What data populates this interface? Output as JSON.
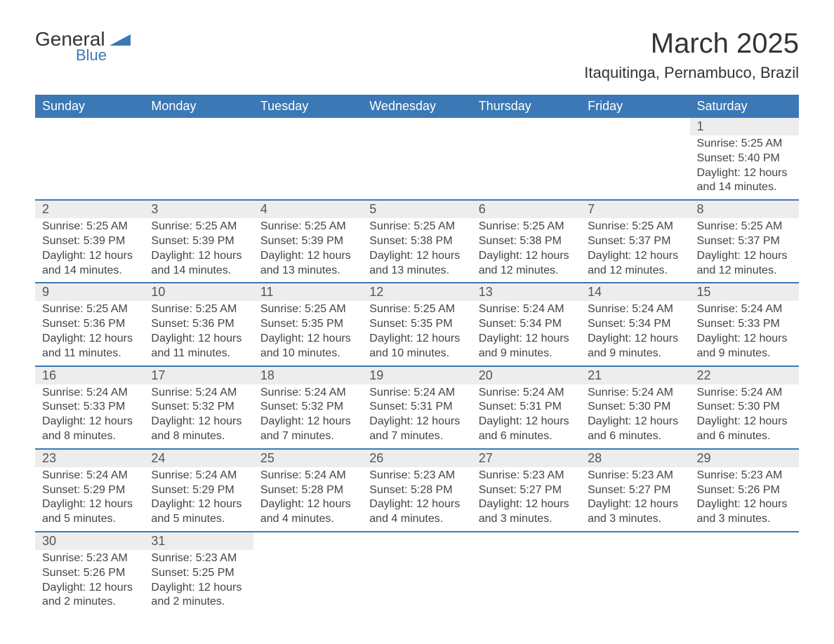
{
  "logo": {
    "text_general": "General",
    "text_blue": "Blue",
    "shape_color": "#3b78b5"
  },
  "title": "March 2025",
  "location": "Itaquitinga, Pernambuco, Brazil",
  "colors": {
    "header_bg": "#3b78b5",
    "header_text": "#ffffff",
    "daynum_bg": "#ededed",
    "row_divider": "#3b78b5",
    "body_text": "#444444",
    "page_bg": "#ffffff"
  },
  "fonts": {
    "title_size_pt": 30,
    "location_size_pt": 16,
    "header_size_pt": 14,
    "daynum_size_pt": 14,
    "detail_size_pt": 12,
    "family": "Arial"
  },
  "day_headers": [
    "Sunday",
    "Monday",
    "Tuesday",
    "Wednesday",
    "Thursday",
    "Friday",
    "Saturday"
  ],
  "weeks": [
    {
      "days": [
        {
          "num": "",
          "sunrise": "",
          "sunset": "",
          "daylight1": "",
          "daylight2": ""
        },
        {
          "num": "",
          "sunrise": "",
          "sunset": "",
          "daylight1": "",
          "daylight2": ""
        },
        {
          "num": "",
          "sunrise": "",
          "sunset": "",
          "daylight1": "",
          "daylight2": ""
        },
        {
          "num": "",
          "sunrise": "",
          "sunset": "",
          "daylight1": "",
          "daylight2": ""
        },
        {
          "num": "",
          "sunrise": "",
          "sunset": "",
          "daylight1": "",
          "daylight2": ""
        },
        {
          "num": "",
          "sunrise": "",
          "sunset": "",
          "daylight1": "",
          "daylight2": ""
        },
        {
          "num": "1",
          "sunrise": "Sunrise: 5:25 AM",
          "sunset": "Sunset: 5:40 PM",
          "daylight1": "Daylight: 12 hours",
          "daylight2": "and 14 minutes."
        }
      ]
    },
    {
      "days": [
        {
          "num": "2",
          "sunrise": "Sunrise: 5:25 AM",
          "sunset": "Sunset: 5:39 PM",
          "daylight1": "Daylight: 12 hours",
          "daylight2": "and 14 minutes."
        },
        {
          "num": "3",
          "sunrise": "Sunrise: 5:25 AM",
          "sunset": "Sunset: 5:39 PM",
          "daylight1": "Daylight: 12 hours",
          "daylight2": "and 14 minutes."
        },
        {
          "num": "4",
          "sunrise": "Sunrise: 5:25 AM",
          "sunset": "Sunset: 5:39 PM",
          "daylight1": "Daylight: 12 hours",
          "daylight2": "and 13 minutes."
        },
        {
          "num": "5",
          "sunrise": "Sunrise: 5:25 AM",
          "sunset": "Sunset: 5:38 PM",
          "daylight1": "Daylight: 12 hours",
          "daylight2": "and 13 minutes."
        },
        {
          "num": "6",
          "sunrise": "Sunrise: 5:25 AM",
          "sunset": "Sunset: 5:38 PM",
          "daylight1": "Daylight: 12 hours",
          "daylight2": "and 12 minutes."
        },
        {
          "num": "7",
          "sunrise": "Sunrise: 5:25 AM",
          "sunset": "Sunset: 5:37 PM",
          "daylight1": "Daylight: 12 hours",
          "daylight2": "and 12 minutes."
        },
        {
          "num": "8",
          "sunrise": "Sunrise: 5:25 AM",
          "sunset": "Sunset: 5:37 PM",
          "daylight1": "Daylight: 12 hours",
          "daylight2": "and 12 minutes."
        }
      ]
    },
    {
      "days": [
        {
          "num": "9",
          "sunrise": "Sunrise: 5:25 AM",
          "sunset": "Sunset: 5:36 PM",
          "daylight1": "Daylight: 12 hours",
          "daylight2": "and 11 minutes."
        },
        {
          "num": "10",
          "sunrise": "Sunrise: 5:25 AM",
          "sunset": "Sunset: 5:36 PM",
          "daylight1": "Daylight: 12 hours",
          "daylight2": "and 11 minutes."
        },
        {
          "num": "11",
          "sunrise": "Sunrise: 5:25 AM",
          "sunset": "Sunset: 5:35 PM",
          "daylight1": "Daylight: 12 hours",
          "daylight2": "and 10 minutes."
        },
        {
          "num": "12",
          "sunrise": "Sunrise: 5:25 AM",
          "sunset": "Sunset: 5:35 PM",
          "daylight1": "Daylight: 12 hours",
          "daylight2": "and 10 minutes."
        },
        {
          "num": "13",
          "sunrise": "Sunrise: 5:24 AM",
          "sunset": "Sunset: 5:34 PM",
          "daylight1": "Daylight: 12 hours",
          "daylight2": "and 9 minutes."
        },
        {
          "num": "14",
          "sunrise": "Sunrise: 5:24 AM",
          "sunset": "Sunset: 5:34 PM",
          "daylight1": "Daylight: 12 hours",
          "daylight2": "and 9 minutes."
        },
        {
          "num": "15",
          "sunrise": "Sunrise: 5:24 AM",
          "sunset": "Sunset: 5:33 PM",
          "daylight1": "Daylight: 12 hours",
          "daylight2": "and 9 minutes."
        }
      ]
    },
    {
      "days": [
        {
          "num": "16",
          "sunrise": "Sunrise: 5:24 AM",
          "sunset": "Sunset: 5:33 PM",
          "daylight1": "Daylight: 12 hours",
          "daylight2": "and 8 minutes."
        },
        {
          "num": "17",
          "sunrise": "Sunrise: 5:24 AM",
          "sunset": "Sunset: 5:32 PM",
          "daylight1": "Daylight: 12 hours",
          "daylight2": "and 8 minutes."
        },
        {
          "num": "18",
          "sunrise": "Sunrise: 5:24 AM",
          "sunset": "Sunset: 5:32 PM",
          "daylight1": "Daylight: 12 hours",
          "daylight2": "and 7 minutes."
        },
        {
          "num": "19",
          "sunrise": "Sunrise: 5:24 AM",
          "sunset": "Sunset: 5:31 PM",
          "daylight1": "Daylight: 12 hours",
          "daylight2": "and 7 minutes."
        },
        {
          "num": "20",
          "sunrise": "Sunrise: 5:24 AM",
          "sunset": "Sunset: 5:31 PM",
          "daylight1": "Daylight: 12 hours",
          "daylight2": "and 6 minutes."
        },
        {
          "num": "21",
          "sunrise": "Sunrise: 5:24 AM",
          "sunset": "Sunset: 5:30 PM",
          "daylight1": "Daylight: 12 hours",
          "daylight2": "and 6 minutes."
        },
        {
          "num": "22",
          "sunrise": "Sunrise: 5:24 AM",
          "sunset": "Sunset: 5:30 PM",
          "daylight1": "Daylight: 12 hours",
          "daylight2": "and 6 minutes."
        }
      ]
    },
    {
      "days": [
        {
          "num": "23",
          "sunrise": "Sunrise: 5:24 AM",
          "sunset": "Sunset: 5:29 PM",
          "daylight1": "Daylight: 12 hours",
          "daylight2": "and 5 minutes."
        },
        {
          "num": "24",
          "sunrise": "Sunrise: 5:24 AM",
          "sunset": "Sunset: 5:29 PM",
          "daylight1": "Daylight: 12 hours",
          "daylight2": "and 5 minutes."
        },
        {
          "num": "25",
          "sunrise": "Sunrise: 5:24 AM",
          "sunset": "Sunset: 5:28 PM",
          "daylight1": "Daylight: 12 hours",
          "daylight2": "and 4 minutes."
        },
        {
          "num": "26",
          "sunrise": "Sunrise: 5:23 AM",
          "sunset": "Sunset: 5:28 PM",
          "daylight1": "Daylight: 12 hours",
          "daylight2": "and 4 minutes."
        },
        {
          "num": "27",
          "sunrise": "Sunrise: 5:23 AM",
          "sunset": "Sunset: 5:27 PM",
          "daylight1": "Daylight: 12 hours",
          "daylight2": "and 3 minutes."
        },
        {
          "num": "28",
          "sunrise": "Sunrise: 5:23 AM",
          "sunset": "Sunset: 5:27 PM",
          "daylight1": "Daylight: 12 hours",
          "daylight2": "and 3 minutes."
        },
        {
          "num": "29",
          "sunrise": "Sunrise: 5:23 AM",
          "sunset": "Sunset: 5:26 PM",
          "daylight1": "Daylight: 12 hours",
          "daylight2": "and 3 minutes."
        }
      ]
    },
    {
      "days": [
        {
          "num": "30",
          "sunrise": "Sunrise: 5:23 AM",
          "sunset": "Sunset: 5:26 PM",
          "daylight1": "Daylight: 12 hours",
          "daylight2": "and 2 minutes."
        },
        {
          "num": "31",
          "sunrise": "Sunrise: 5:23 AM",
          "sunset": "Sunset: 5:25 PM",
          "daylight1": "Daylight: 12 hours",
          "daylight2": "and 2 minutes."
        },
        {
          "num": "",
          "sunrise": "",
          "sunset": "",
          "daylight1": "",
          "daylight2": ""
        },
        {
          "num": "",
          "sunrise": "",
          "sunset": "",
          "daylight1": "",
          "daylight2": ""
        },
        {
          "num": "",
          "sunrise": "",
          "sunset": "",
          "daylight1": "",
          "daylight2": ""
        },
        {
          "num": "",
          "sunrise": "",
          "sunset": "",
          "daylight1": "",
          "daylight2": ""
        },
        {
          "num": "",
          "sunrise": "",
          "sunset": "",
          "daylight1": "",
          "daylight2": ""
        }
      ]
    }
  ]
}
